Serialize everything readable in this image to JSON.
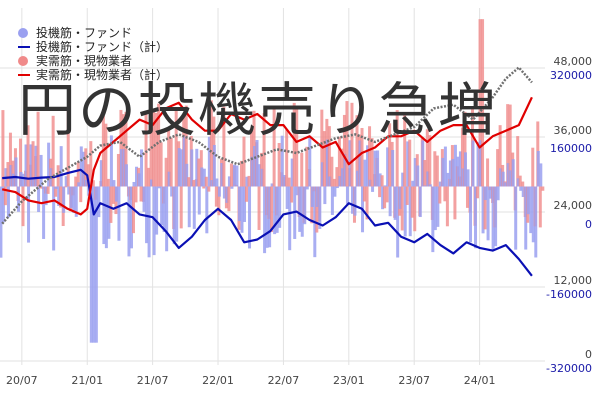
{
  "headline": "円の投機売り急増",
  "colors": {
    "spec_bar": "#9aa0f0",
    "spec_line": "#0a10b4",
    "real_bar": "#f08a8a",
    "real_line": "#e00000",
    "price_line": "#707070",
    "grid": "#e2e2e2",
    "right_axis_text": "#1a1aa8"
  },
  "legend": [
    {
      "label": "投機筋・ファンド",
      "kind": "dot",
      "color": "#9aa0f0"
    },
    {
      "label": "投機筋・ファンド（計）",
      "kind": "line",
      "color": "#0a10b4"
    },
    {
      "label": "実需筋・現物業者",
      "kind": "dot",
      "color": "#f08a8a"
    },
    {
      "label": "実需筋・現物業者（計）",
      "kind": "line",
      "color": "#e00000"
    }
  ],
  "chart_data": {
    "type": "bar",
    "title": "",
    "x_ticks": [
      "20/07",
      "21/01",
      "21/07",
      "22/01",
      "22/07",
      "23/01",
      "23/07",
      "24/01"
    ],
    "left_axis": {
      "ticks": [
        0,
        12000,
        24000,
        36000,
        48000
      ],
      "tick_labels": [
        "0",
        "12,000",
        "24,000",
        "36,000",
        "48,000"
      ],
      "range": [
        0,
        48000
      ]
    },
    "right_axis": {
      "ticks": [
        -320000,
        -160000,
        0,
        160000,
        320000
      ],
      "tick_labels": [
        "-320000",
        "-160000",
        "0",
        "160000",
        "320000"
      ],
      "range": [
        -320000,
        320000
      ]
    },
    "x_range": [
      2020.333,
      2024.5
    ],
    "grid": true,
    "legend_position": "top-left",
    "series": [
      {
        "name": "投機筋・ファンド（計）",
        "axis": "right",
        "style": "line",
        "x": [
          2020.35,
          2020.45,
          2020.55,
          2020.65,
          2020.75,
          2020.85,
          2020.95,
          2021.0,
          2021.05,
          2021.1,
          2021.2,
          2021.3,
          2021.4,
          2021.5,
          2021.6,
          2021.7,
          2021.8,
          2021.9,
          2022.0,
          2022.1,
          2022.2,
          2022.3,
          2022.4,
          2022.5,
          2022.6,
          2022.7,
          2022.8,
          2022.9,
          2023.0,
          2023.1,
          2023.2,
          2023.3,
          2023.4,
          2023.5,
          2023.6,
          2023.7,
          2023.8,
          2023.9,
          2024.0,
          2024.1,
          2024.2,
          2024.3,
          2024.4
        ],
        "values": [
          15000,
          17000,
          14000,
          16000,
          17000,
          24000,
          30000,
          20000,
          -50000,
          -30000,
          -40000,
          -30000,
          -50000,
          -55000,
          -80000,
          -110000,
          -90000,
          -60000,
          -40000,
          -60000,
          -100000,
          -95000,
          -80000,
          -50000,
          -45000,
          -60000,
          -70000,
          -55000,
          -30000,
          -40000,
          -70000,
          -65000,
          -90000,
          -100000,
          -85000,
          -105000,
          -120000,
          -100000,
          -110000,
          -115000,
          -105000,
          -130000,
          -160000
        ]
      },
      {
        "name": "実需筋・現物業者（計）",
        "axis": "right",
        "style": "line",
        "x": [
          2020.35,
          2020.45,
          2020.55,
          2020.65,
          2020.75,
          2020.85,
          2020.95,
          2021.0,
          2021.05,
          2021.1,
          2021.2,
          2021.3,
          2021.4,
          2021.5,
          2021.6,
          2021.7,
          2021.8,
          2021.9,
          2022.0,
          2022.1,
          2022.2,
          2022.3,
          2022.4,
          2022.5,
          2022.6,
          2022.7,
          2022.8,
          2022.9,
          2023.0,
          2023.1,
          2023.2,
          2023.3,
          2023.4,
          2023.5,
          2023.6,
          2023.7,
          2023.8,
          2023.9,
          2024.0,
          2024.1,
          2024.2,
          2024.3,
          2024.4
        ],
        "values": [
          -5000,
          -10000,
          -25000,
          -30000,
          -25000,
          -40000,
          -50000,
          -40000,
          30000,
          60000,
          80000,
          100000,
          120000,
          110000,
          140000,
          150000,
          120000,
          100000,
          100000,
          130000,
          120000,
          130000,
          110000,
          110000,
          80000,
          90000,
          70000,
          80000,
          40000,
          60000,
          70000,
          90000,
          90000,
          100000,
          80000,
          100000,
          110000,
          110000,
          70000,
          90000,
          100000,
          110000,
          160000
        ]
      },
      {
        "name": "",
        "axis": "left",
        "style": "dotted-line",
        "x": [
          2020.35,
          2020.5,
          2020.7,
          2020.9,
          2021.0,
          2021.1,
          2021.25,
          2021.4,
          2021.55,
          2021.7,
          2021.85,
          2022.0,
          2022.15,
          2022.3,
          2022.45,
          2022.6,
          2022.75,
          2022.9,
          2023.05,
          2023.2,
          2023.35,
          2023.5,
          2023.65,
          2023.8,
          2023.95,
          2024.1,
          2024.2,
          2024.3,
          2024.4
        ],
        "values": [
          19000,
          22000,
          25000,
          27000,
          28000,
          29500,
          30000,
          28000,
          30000,
          31000,
          30000,
          28000,
          27000,
          28000,
          29000,
          28500,
          29500,
          30500,
          31000,
          30000,
          31000,
          32000,
          34500,
          35000,
          33000,
          36000,
          38500,
          40000,
          38000
        ]
      }
    ],
    "bar_series": [
      {
        "name": "投機筋・ファンド",
        "axis": "right",
        "color_key": "spec_bar",
        "value_range": [
          -280000,
          200000
        ]
      },
      {
        "name": "実需筋・現物業者",
        "axis": "right",
        "color_key": "real_bar",
        "value_range": [
          -200000,
          300000
        ]
      }
    ]
  }
}
